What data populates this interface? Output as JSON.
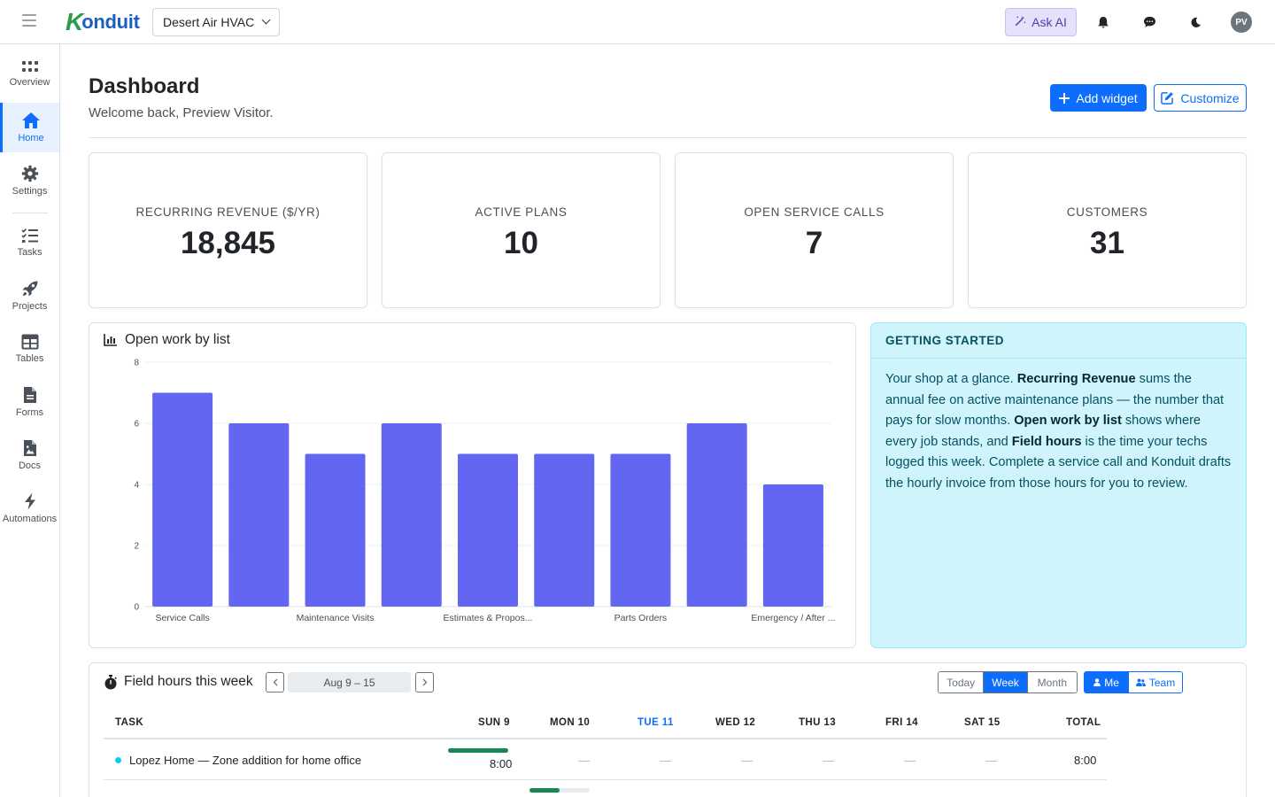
{
  "app": {
    "logo_k": "K",
    "logo_rest": "onduit",
    "org_name": "Desert Air HVAC",
    "ask_ai_label": "Ask AI",
    "avatar_initials": "PV"
  },
  "sidebar": {
    "items": [
      {
        "label": "Overview",
        "icon": "grid-icon"
      },
      {
        "label": "Home",
        "icon": "home-icon",
        "active": true
      },
      {
        "label": "Settings",
        "icon": "gear-icon"
      },
      {
        "label": "Tasks",
        "icon": "checklist-icon"
      },
      {
        "label": "Projects",
        "icon": "rocket-icon"
      },
      {
        "label": "Tables",
        "icon": "table-icon"
      },
      {
        "label": "Forms",
        "icon": "form-icon"
      },
      {
        "label": "Docs",
        "icon": "doc-icon"
      },
      {
        "label": "Automations",
        "icon": "lightning-icon"
      }
    ]
  },
  "header": {
    "title": "Dashboard",
    "subtitle": "Welcome back, Preview Visitor.",
    "add_widget_label": "Add widget",
    "customize_label": "Customize"
  },
  "kpis": [
    {
      "label": "Recurring Revenue ($/yr)",
      "value": "18,845"
    },
    {
      "label": "Active Plans",
      "value": "10"
    },
    {
      "label": "Open Service Calls",
      "value": "7"
    },
    {
      "label": "Customers",
      "value": "31"
    }
  ],
  "chart_data": {
    "type": "bar",
    "title": "Open work by list",
    "categories": [
      "Service Calls",
      "",
      "Maintenance Visits",
      "",
      "Estimates & Propos...",
      "",
      "Parts Orders",
      "",
      "Emergency / After ..."
    ],
    "values": [
      7,
      6,
      5,
      6,
      5,
      5,
      5,
      6,
      4
    ],
    "yticks": [
      "0",
      "2",
      "4",
      "6",
      "8"
    ],
    "ylim": [
      0,
      8
    ],
    "bar_color": "#6366f1",
    "grid": true
  },
  "getting_started": {
    "title": "Getting Started",
    "segments": [
      {
        "t": "Your shop at a glance. ",
        "b": false
      },
      {
        "t": "Recurring Revenue",
        "b": true
      },
      {
        "t": " sums the annual fee on active maintenance plans — the number that pays for slow months. ",
        "b": false
      },
      {
        "t": "Open work by list",
        "b": true
      },
      {
        "t": " shows where every job stands, and ",
        "b": false
      },
      {
        "t": "Field hours",
        "b": true
      },
      {
        "t": " is the time your techs logged this week. Complete a service call and Konduit drafts the hourly invoice from those hours for you to review.",
        "b": false
      }
    ]
  },
  "field_hours": {
    "title": "Field hours this week",
    "range": "Aug 9 – 15",
    "period_options": [
      "Today",
      "Week",
      "Month"
    ],
    "period_selected": "Week",
    "scope_options": [
      "Me",
      "Team"
    ],
    "scope_selected": "Me",
    "columns": [
      "Task",
      "Sun 9",
      "Mon 10",
      "Tue 11",
      "Wed 12",
      "Thu 13",
      "Fri 14",
      "Sat 15",
      "Total"
    ],
    "today_column": "Tue 11",
    "rows": [
      {
        "task": "Lopez Home — Zone addition for home office",
        "sun": "8:00",
        "mon": "—",
        "tue": "—",
        "wed": "—",
        "thu": "—",
        "fri": "—",
        "sat": "—",
        "total": "8:00",
        "sun_fill": 1.0
      }
    ],
    "partial_row_mon_fill": 0.5
  }
}
